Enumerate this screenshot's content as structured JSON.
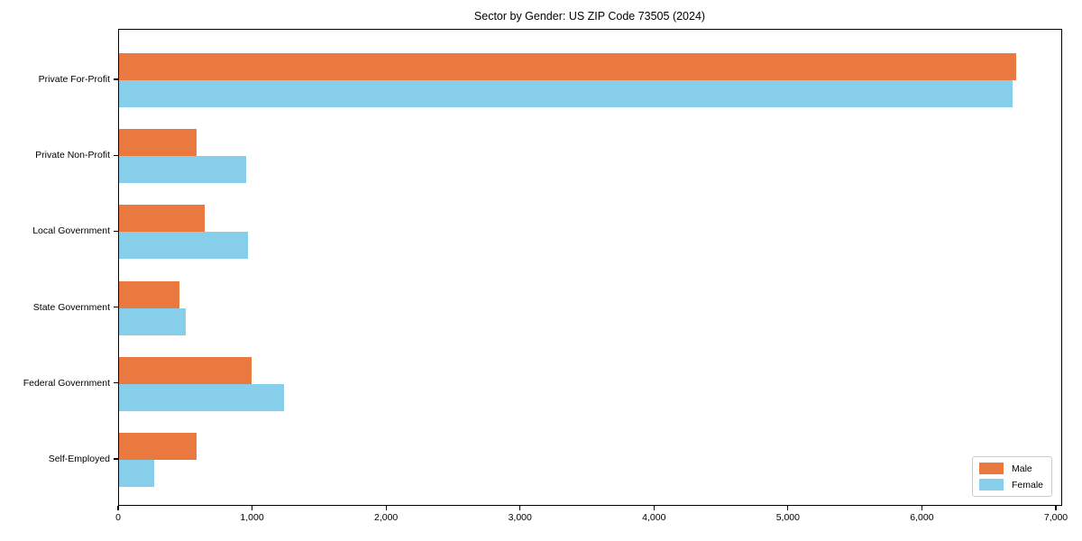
{
  "chart_data": {
    "type": "bar",
    "orientation": "horizontal",
    "title": "Sector by Gender: US ZIP Code 73505 (2024)",
    "categories": [
      "Private For-Profit",
      "Private Non-Profit",
      "Local Government",
      "State Government",
      "Federal Government",
      "Self-Employed"
    ],
    "series": [
      {
        "name": "Male",
        "color": "#e9793e",
        "values": [
          6700,
          580,
          640,
          450,
          990,
          580
        ]
      },
      {
        "name": "Female",
        "color": "#87ceeb",
        "values": [
          6670,
          950,
          960,
          500,
          1230,
          260
        ]
      }
    ],
    "xlabel": "",
    "ylabel": "",
    "xlim": [
      0,
      7000
    ],
    "xticks": [
      0,
      1000,
      2000,
      3000,
      4000,
      5000,
      6000,
      7000
    ],
    "xtick_labels": [
      "0",
      "1,000",
      "2,000",
      "3,000",
      "4,000",
      "5,000",
      "6,000",
      "7,000"
    ],
    "grid": false,
    "legend_position": "lower right",
    "spine_color": "#000000",
    "background_color": "#ffffff"
  }
}
